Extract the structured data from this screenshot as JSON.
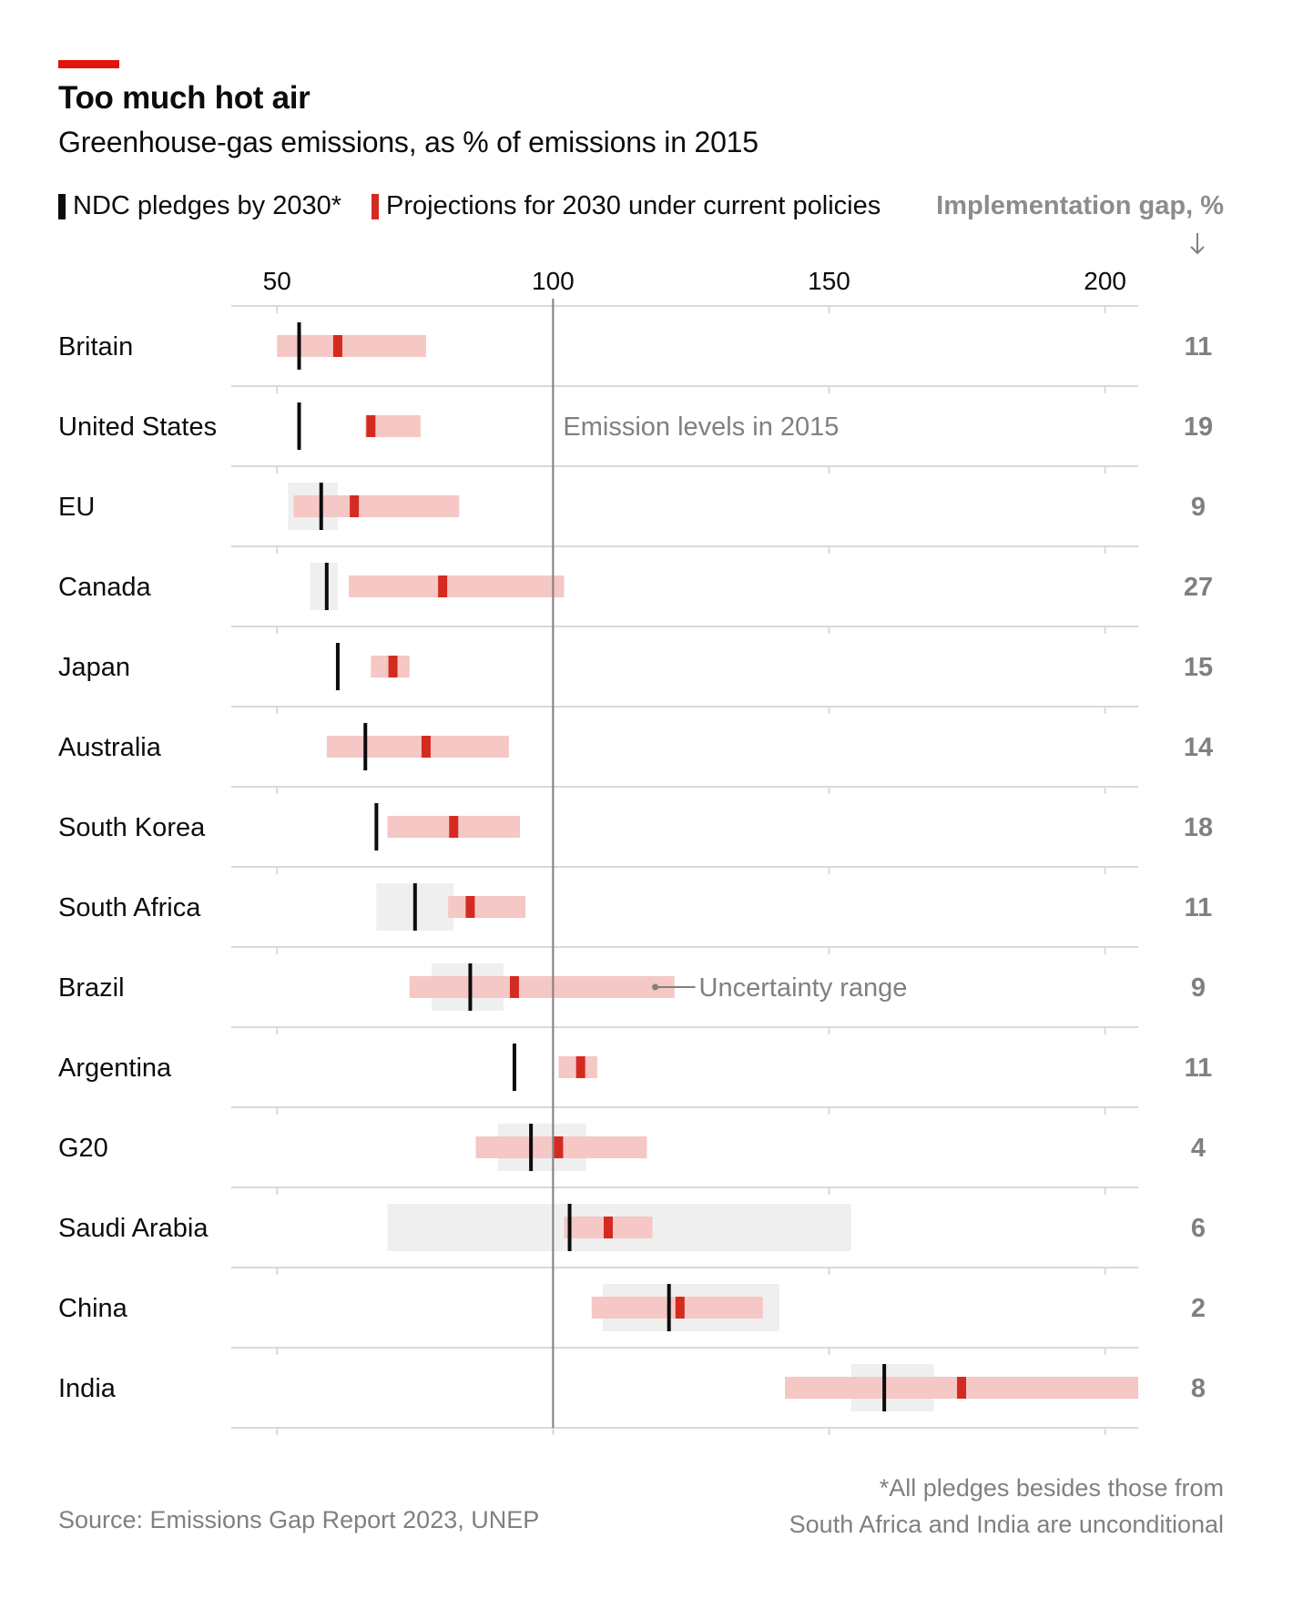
{
  "colors": {
    "accent": "#e3120b",
    "pledge": "#0c0c0c",
    "projection": "#d42b21",
    "projection_range": "#f5c7c5",
    "pledge_range": "#efefef",
    "grid": "#d9d9d9",
    "reference_line": "#7f7f7f",
    "muted_text": "#808080"
  },
  "header": {
    "title": "Too much hot air",
    "subtitle": "Greenhouse-gas emissions, as % of emissions in 2015"
  },
  "legend": {
    "pledge_label": "NDC pledges by 2030*",
    "projection_label": "Projections for 2030 under current policies",
    "gap_label": "Implementation gap, %",
    "gap_arrow_icon": "arrow-down-icon"
  },
  "chart_data": {
    "type": "range-dot",
    "title": "Too much hot air",
    "subtitle": "Greenhouse-gas emissions, as % of emissions in 2015",
    "x_ticks": [
      50,
      100,
      150,
      200
    ],
    "xlim": [
      46,
      206
    ],
    "reference_line": {
      "value": 100,
      "label": "Emission levels in 2015"
    },
    "annotation": {
      "label": "Uncertainty range",
      "country": "Brazil",
      "x": 118.5
    },
    "series_names": [
      "NDC pledges by 2030*",
      "Projections for 2030 under current policies"
    ],
    "gap_column_label": "Implementation gap, %",
    "countries": [
      {
        "name": "Britain",
        "pledge": 54,
        "pledge_range": null,
        "projection": 61,
        "projection_range": [
          50,
          77
        ],
        "gap": "11"
      },
      {
        "name": "United States",
        "pledge": 54,
        "pledge_range": null,
        "projection": 67,
        "projection_range": [
          66,
          76
        ],
        "gap": "19"
      },
      {
        "name": "EU",
        "pledge": 58,
        "pledge_range": [
          52,
          61
        ],
        "projection": 64,
        "projection_range": [
          53,
          83
        ],
        "gap": "9"
      },
      {
        "name": "Canada",
        "pledge": 59,
        "pledge_range": [
          56,
          61
        ],
        "projection": 80,
        "projection_range": [
          63,
          102
        ],
        "gap": "27"
      },
      {
        "name": "Japan",
        "pledge": 61,
        "pledge_range": null,
        "projection": 71,
        "projection_range": [
          67,
          74
        ],
        "gap": "15"
      },
      {
        "name": "Australia",
        "pledge": 66,
        "pledge_range": null,
        "projection": 77,
        "projection_range": [
          59,
          92
        ],
        "gap": "14"
      },
      {
        "name": "South Korea",
        "pledge": 68,
        "pledge_range": null,
        "projection": 82,
        "projection_range": [
          70,
          94
        ],
        "gap": "18"
      },
      {
        "name": "South Africa",
        "pledge": 75,
        "pledge_range": [
          68,
          82
        ],
        "projection": 85,
        "projection_range": [
          81,
          95
        ],
        "gap": "11"
      },
      {
        "name": "Brazil",
        "pledge": 85,
        "pledge_range": [
          78,
          91
        ],
        "projection": 93,
        "projection_range": [
          74,
          122
        ],
        "gap": "9"
      },
      {
        "name": "Argentina",
        "pledge": 93,
        "pledge_range": null,
        "projection": 105,
        "projection_range": [
          101,
          108
        ],
        "gap": "11"
      },
      {
        "name": "G20",
        "pledge": 96,
        "pledge_range": [
          90,
          106
        ],
        "projection": 101,
        "projection_range": [
          86,
          117
        ],
        "gap": "4"
      },
      {
        "name": "Saudi Arabia",
        "pledge": 103,
        "pledge_range": [
          70,
          154
        ],
        "projection": 110,
        "projection_range": [
          102,
          118
        ],
        "gap": "6"
      },
      {
        "name": "China",
        "pledge": 121,
        "pledge_range": [
          109,
          141
        ],
        "projection": 123,
        "projection_range": [
          107,
          138
        ],
        "gap": "2"
      },
      {
        "name": "India",
        "pledge": 160,
        "pledge_range": [
          154,
          169
        ],
        "projection": 174,
        "projection_range": [
          142,
          206
        ],
        "gap": "8"
      }
    ]
  },
  "footer": {
    "footnote_line1": "*All pledges besides those from",
    "footnote_line2": "South Africa and India are unconditional",
    "source": "Source: Emissions Gap Report 2023, UNEP"
  }
}
